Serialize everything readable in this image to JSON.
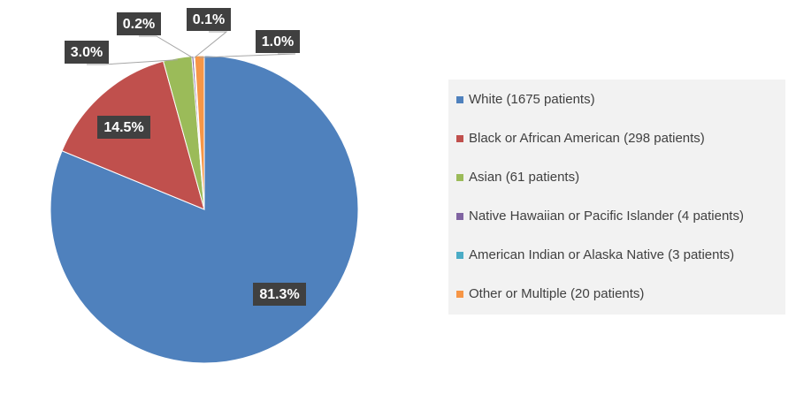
{
  "chart_data": {
    "type": "pie",
    "categories": [
      "White (1675 patients)",
      "Black or African American (298 patients)",
      "Asian (61 patients)",
      "Native Hawaiian or Pacific Islander (4 patients)",
      "American Indian or Alaska Native (3 patients)",
      "Other or Multiple (20 patients)"
    ],
    "values": [
      81.3,
      14.5,
      3.0,
      0.2,
      0.1,
      1.0
    ],
    "value_labels": [
      "81.3%",
      "14.5%",
      "3.0%",
      "0.2%",
      "0.1%",
      "1.0%"
    ],
    "colors": [
      "#4f81bd",
      "#c0504d",
      "#9bbb59",
      "#8064a2",
      "#4bacc6",
      "#f79646"
    ],
    "legend": "right"
  }
}
